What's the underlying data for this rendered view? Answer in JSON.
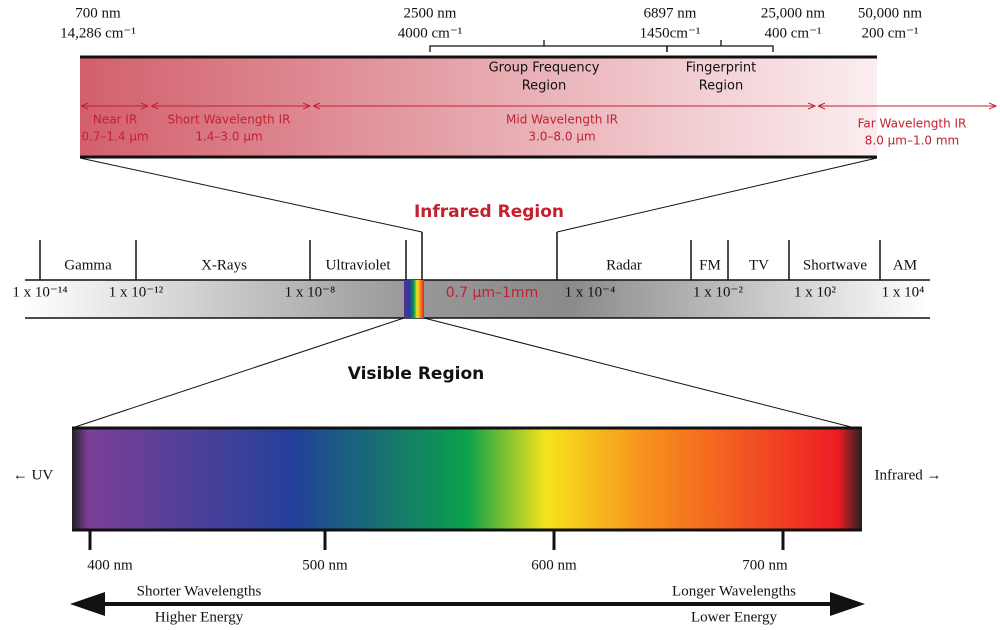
{
  "ir_scale": [
    {
      "wavelength": "700 nm",
      "wavenumber": "14,286 cm⁻¹"
    },
    {
      "wavelength": "2500 nm",
      "wavenumber": "4000 cm⁻¹"
    },
    {
      "wavelength": "6897 nm",
      "wavenumber": "1450cm⁻¹"
    },
    {
      "wavelength": "25,000 nm",
      "wavenumber": "400 cm⁻¹"
    },
    {
      "wavelength": "50,000 nm",
      "wavenumber": "200 cm⁻¹"
    }
  ],
  "ir_brackets": [
    {
      "lines": [
        "Group Frequency",
        "Region"
      ]
    },
    {
      "lines": [
        "Fingerprint",
        "Region"
      ]
    }
  ],
  "ir_bands": [
    {
      "name": "Near IR",
      "range": "0.7–1.4 µm"
    },
    {
      "name": "Short Wavelength IR",
      "range": "1.4–3.0 µm"
    },
    {
      "name": "Mid Wavelength IR",
      "range": "3.0–8.0 µm"
    },
    {
      "name": "Far Wavelength IR",
      "range": "8.0 µm–1.0 mm"
    }
  ],
  "infrared_title": "Infrared Region",
  "spectrum": {
    "regions": [
      "Gamma",
      "X-Rays",
      "Ultraviolet",
      "Radar",
      "FM",
      "TV",
      "Shortwave",
      "AM"
    ],
    "scale": [
      "1 x 10⁻¹⁴",
      "1 x 10⁻¹²",
      "1 x 10⁻⁸",
      "1 x 10⁻⁴",
      "1 x 10⁻²",
      "1 x 10²",
      "1 x 10⁴"
    ],
    "ir_range": "0.7 µm–1mm"
  },
  "visible_title": "Visible Region",
  "visible": {
    "left": "← UV",
    "right": "Infrared →",
    "ticks": [
      "400 nm",
      "500 nm",
      "600 nm",
      "700 nm"
    ]
  },
  "energy": {
    "left_top": "Shorter Wavelengths",
    "left_bottom": "Higher Energy",
    "right_top": "Longer Wavelengths",
    "right_bottom": "Lower Energy"
  }
}
